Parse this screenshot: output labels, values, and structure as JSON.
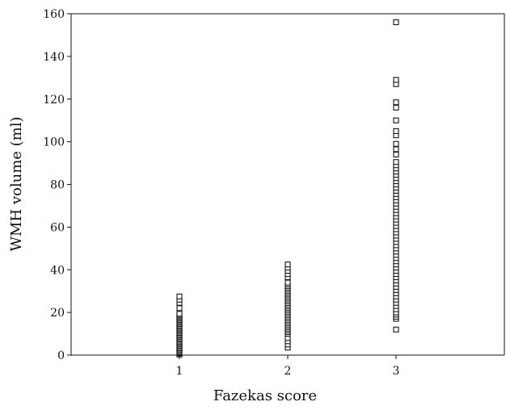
{
  "chart_data": {
    "type": "scatter",
    "title": "",
    "xlabel": "Fazekas score",
    "ylabel": "WMH volume (ml)",
    "x_ticks": [
      "1",
      "2",
      "3"
    ],
    "y_ticks": [
      "0",
      "20",
      "40",
      "60",
      "80",
      "100",
      "120",
      "140",
      "160"
    ],
    "xlim": [
      0,
      4
    ],
    "ylim": [
      0,
      160
    ],
    "grid": false,
    "legend": "none",
    "marker": "open-square",
    "colors": {
      "marker": "#111111",
      "axis": "#111111",
      "background": "#ffffff"
    },
    "series": [
      {
        "points": [
          [
            1,
            0.3
          ],
          [
            1,
            0.8
          ],
          [
            1,
            1.4
          ],
          [
            1,
            2.0
          ],
          [
            1,
            2.6
          ],
          [
            1,
            3.2
          ],
          [
            1,
            3.8
          ],
          [
            1,
            4.4
          ],
          [
            1,
            5.0
          ],
          [
            1,
            5.6
          ],
          [
            1,
            6.2
          ],
          [
            1,
            6.8
          ],
          [
            1,
            7.4
          ],
          [
            1,
            8.0
          ],
          [
            1,
            8.6
          ],
          [
            1,
            9.2
          ],
          [
            1,
            9.8
          ],
          [
            1,
            10.4
          ],
          [
            1,
            11.0
          ],
          [
            1,
            11.6
          ],
          [
            1,
            12.2
          ],
          [
            1,
            12.8
          ],
          [
            1,
            13.4
          ],
          [
            1,
            14.0
          ],
          [
            1,
            14.6
          ],
          [
            1,
            15.2
          ],
          [
            1,
            15.8
          ],
          [
            1,
            16.4
          ],
          [
            1,
            17.0
          ],
          [
            1,
            17.6
          ],
          [
            1,
            18.2
          ],
          [
            1,
            18.8
          ],
          [
            1,
            19.4
          ],
          [
            1,
            22.0
          ],
          [
            1,
            24.5
          ],
          [
            1,
            26.0
          ],
          [
            1,
            27.5
          ],
          [
            2,
            3.5
          ],
          [
            2,
            5.0
          ],
          [
            2,
            6.5
          ],
          [
            2,
            8.0
          ],
          [
            2,
            10.0
          ],
          [
            2,
            10.8
          ],
          [
            2,
            11.6
          ],
          [
            2,
            12.4
          ],
          [
            2,
            13.2
          ],
          [
            2,
            14.0
          ],
          [
            2,
            14.8
          ],
          [
            2,
            15.6
          ],
          [
            2,
            16.4
          ],
          [
            2,
            17.2
          ],
          [
            2,
            18.0
          ],
          [
            2,
            18.8
          ],
          [
            2,
            19.6
          ],
          [
            2,
            20.4
          ],
          [
            2,
            21.2
          ],
          [
            2,
            22.0
          ],
          [
            2,
            22.8
          ],
          [
            2,
            23.6
          ],
          [
            2,
            24.4
          ],
          [
            2,
            25.2
          ],
          [
            2,
            26.0
          ],
          [
            2,
            26.8
          ],
          [
            2,
            27.6
          ],
          [
            2,
            28.4
          ],
          [
            2,
            29.2
          ],
          [
            2,
            30.0
          ],
          [
            2,
            30.8
          ],
          [
            2,
            31.6
          ],
          [
            2,
            32.4
          ],
          [
            2,
            33.2
          ],
          [
            2,
            34.0
          ],
          [
            2,
            36.5
          ],
          [
            2,
            38.0
          ],
          [
            2,
            39.5
          ],
          [
            2,
            41.0
          ],
          [
            2,
            42.5
          ],
          [
            3,
            12.0
          ],
          [
            3,
            17.0
          ],
          [
            3,
            18.0
          ],
          [
            3,
            19.0
          ],
          [
            3,
            20.0
          ],
          [
            3,
            21.5
          ],
          [
            3,
            23.0
          ],
          [
            3,
            24.5
          ],
          [
            3,
            26.0
          ],
          [
            3,
            27.5
          ],
          [
            3,
            29.0
          ],
          [
            3,
            30.5
          ],
          [
            3,
            32.0
          ],
          [
            3,
            33.5
          ],
          [
            3,
            35.0
          ],
          [
            3,
            36.5
          ],
          [
            3,
            38.0
          ],
          [
            3,
            39.5
          ],
          [
            3,
            41.0
          ],
          [
            3,
            42.5
          ],
          [
            3,
            44.0
          ],
          [
            3,
            45.5
          ],
          [
            3,
            47.0
          ],
          [
            3,
            48.5
          ],
          [
            3,
            50.0
          ],
          [
            3,
            51.5
          ],
          [
            3,
            53.0
          ],
          [
            3,
            54.5
          ],
          [
            3,
            56.0
          ],
          [
            3,
            57.5
          ],
          [
            3,
            59.0
          ],
          [
            3,
            60.5
          ],
          [
            3,
            62.0
          ],
          [
            3,
            63.5
          ],
          [
            3,
            65.0
          ],
          [
            3,
            66.5
          ],
          [
            3,
            68.0
          ],
          [
            3,
            69.5
          ],
          [
            3,
            71.0
          ],
          [
            3,
            72.5
          ],
          [
            3,
            74.0
          ],
          [
            3,
            75.5
          ],
          [
            3,
            77.0
          ],
          [
            3,
            78.5
          ],
          [
            3,
            80.0
          ],
          [
            3,
            81.5
          ],
          [
            3,
            83.0
          ],
          [
            3,
            84.5
          ],
          [
            3,
            86.0
          ],
          [
            3,
            87.5
          ],
          [
            3,
            89.0
          ],
          [
            3,
            90.5
          ],
          [
            3,
            94.0
          ],
          [
            3,
            96.5
          ],
          [
            3,
            99.0
          ],
          [
            3,
            103.0
          ],
          [
            3,
            105.0
          ],
          [
            3,
            110.0
          ],
          [
            3,
            116.0
          ],
          [
            3,
            118.5
          ],
          [
            3,
            127.0
          ],
          [
            3,
            129.0
          ],
          [
            3,
            156.0
          ]
        ]
      }
    ]
  }
}
